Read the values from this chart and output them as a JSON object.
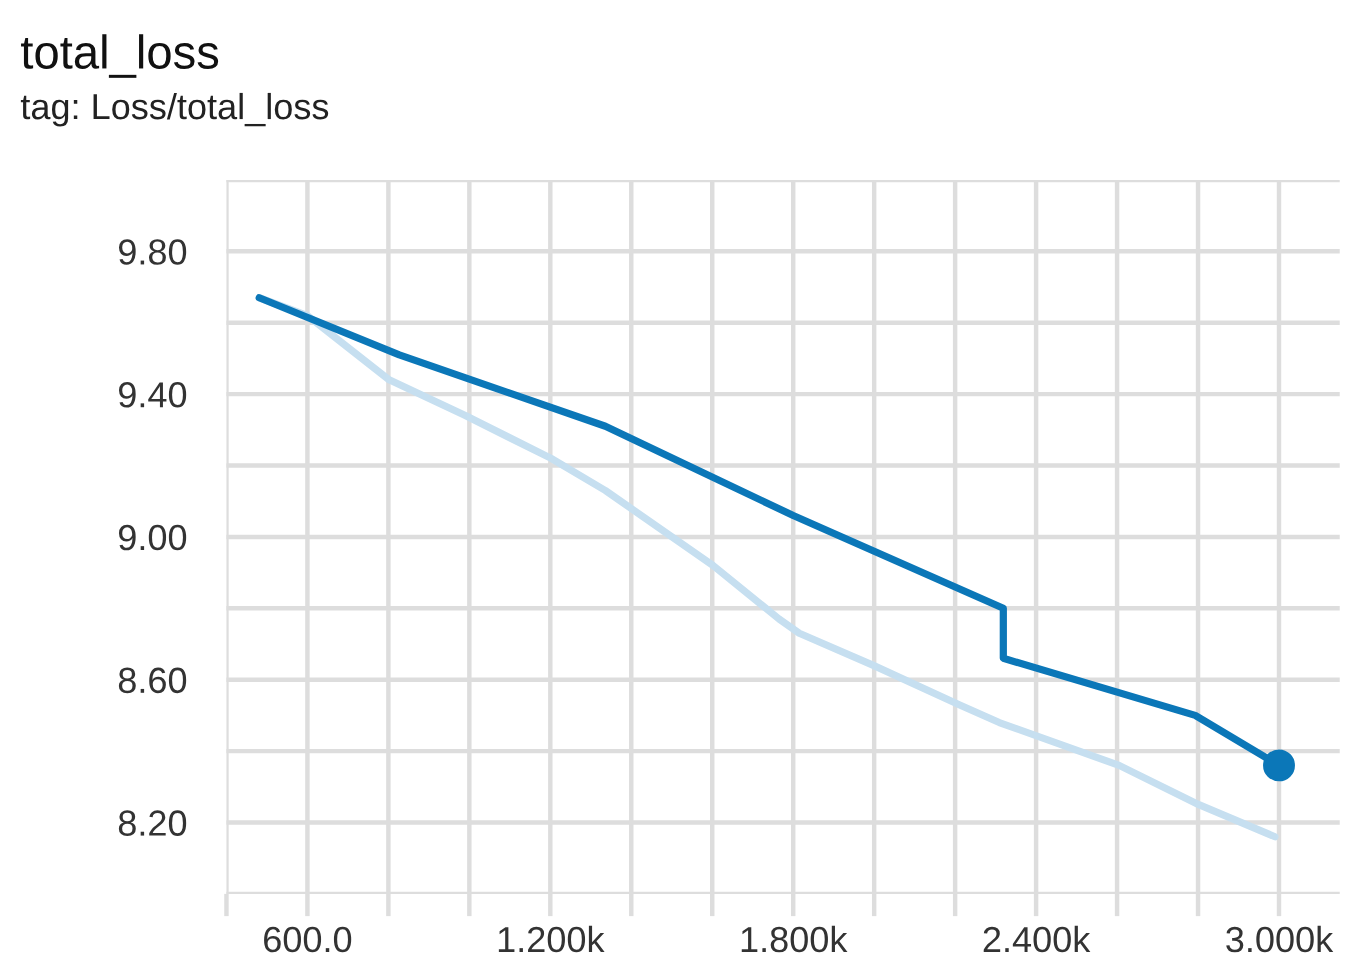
{
  "chart_data": {
    "type": "line",
    "title": "total_loss",
    "subtitle": "tag: Loss/total_loss",
    "series": [
      {
        "color": "#c6dff0",
        "x": [
          481,
          600,
          802,
          990,
          1202,
          1336,
          1602,
          1765,
          1815,
          1998,
          2210,
          2309,
          2605,
          2802,
          2990
        ],
        "values": [
          9.67,
          9.62,
          9.44,
          9.34,
          9.22,
          9.13,
          8.92,
          8.77,
          8.73,
          8.64,
          8.53,
          8.48,
          8.36,
          8.25,
          8.16
        ]
      },
      {
        "color": "#0b77b8",
        "x": [
          481,
          827,
          1336,
          1800,
          2319,
          2319,
          2793,
          3000
        ],
        "values": [
          9.67,
          9.51,
          9.31,
          9.06,
          8.8,
          8.66,
          8.5,
          8.36
        ]
      },
      {
        "type": "scatter",
        "color": "#0b77b8",
        "x": [
          3000
        ],
        "values": [
          8.36
        ]
      }
    ],
    "xlim": [
      400,
      3150
    ],
    "ylim": [
      8.0,
      10.0
    ],
    "xticks": [
      {
        "value": 400,
        "label": null
      },
      {
        "value": 600,
        "label": "600.0"
      },
      {
        "value": 800,
        "label": null
      },
      {
        "value": 1000,
        "label": null
      },
      {
        "value": 1200,
        "label": "1.200k"
      },
      {
        "value": 1400,
        "label": null
      },
      {
        "value": 1600,
        "label": null
      },
      {
        "value": 1800,
        "label": "1.800k"
      },
      {
        "value": 2000,
        "label": null
      },
      {
        "value": 2200,
        "label": null
      },
      {
        "value": 2400,
        "label": "2.400k"
      },
      {
        "value": 2600,
        "label": null
      },
      {
        "value": 2800,
        "label": null
      },
      {
        "value": 3000,
        "label": "3.000k"
      }
    ],
    "yticks": [
      {
        "value": 8.0,
        "label": null
      },
      {
        "value": 8.2,
        "label": "8.20"
      },
      {
        "value": 8.4,
        "label": null
      },
      {
        "value": 8.6,
        "label": "8.60"
      },
      {
        "value": 8.8,
        "label": null
      },
      {
        "value": 9.0,
        "label": "9.00"
      },
      {
        "value": 9.2,
        "label": null
      },
      {
        "value": 9.4,
        "label": "9.40"
      },
      {
        "value": 9.6,
        "label": null
      },
      {
        "value": 9.8,
        "label": "9.80"
      },
      {
        "value": 10.0,
        "label": null
      }
    ],
    "grid": true
  }
}
